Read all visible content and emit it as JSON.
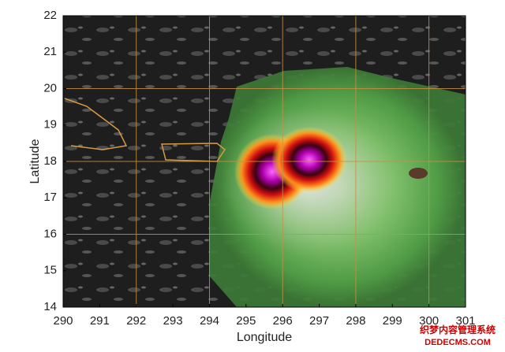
{
  "chart_data": {
    "type": "image",
    "xlabel": "Longitude",
    "ylabel": "Latitude",
    "xlim": [
      290,
      301
    ],
    "ylim": [
      14,
      22
    ],
    "xticks": [
      290,
      291,
      292,
      293,
      294,
      295,
      296,
      297,
      298,
      299,
      300,
      301
    ],
    "yticks": [
      14,
      15,
      16,
      17,
      18,
      19,
      20,
      21,
      22
    ]
  },
  "watermark": {
    "line1": "织梦内容管理系统",
    "line2": "DEDECMS.COM"
  }
}
